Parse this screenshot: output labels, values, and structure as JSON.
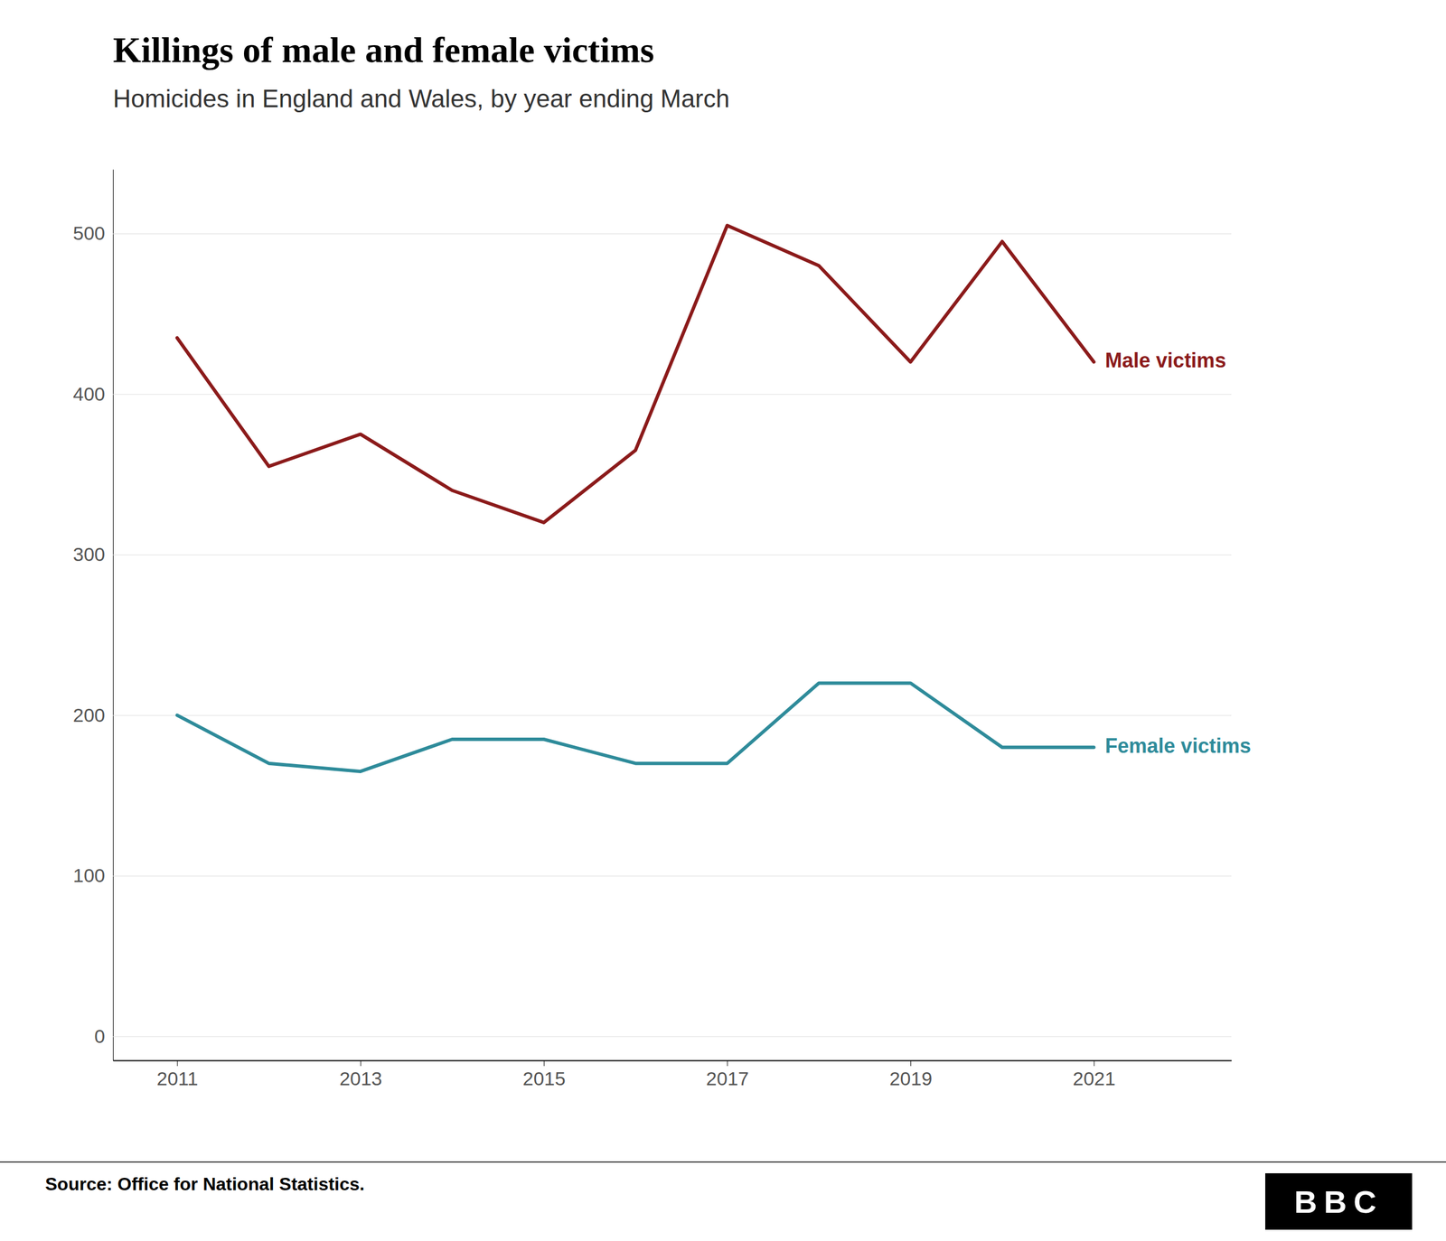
{
  "chart_data": {
    "type": "line",
    "title": "Killings of male and female victims",
    "subtitle": "Homicides in England and Wales, by year ending March",
    "x": [
      2011,
      2012,
      2013,
      2014,
      2015,
      2016,
      2017,
      2018,
      2019,
      2020,
      2021
    ],
    "series": [
      {
        "name": "Male victims",
        "color": "#8B1A1A",
        "values": [
          435,
          355,
          375,
          340,
          320,
          365,
          505,
          480,
          420,
          495,
          420
        ]
      },
      {
        "name": "Female victims",
        "color": "#2E8B9A",
        "values": [
          200,
          170,
          165,
          185,
          185,
          170,
          170,
          220,
          220,
          180,
          180
        ]
      }
    ],
    "xlim": [
      2010.3,
      2022.5
    ],
    "xticks": [
      2011,
      2013,
      2015,
      2017,
      2019,
      2021
    ],
    "ylim": [
      -15,
      540
    ],
    "yticks": [
      0,
      100,
      200,
      300,
      400,
      500
    ],
    "grid": true,
    "annotations": [
      "Source: Office for National Statistics.",
      "BBC"
    ]
  }
}
